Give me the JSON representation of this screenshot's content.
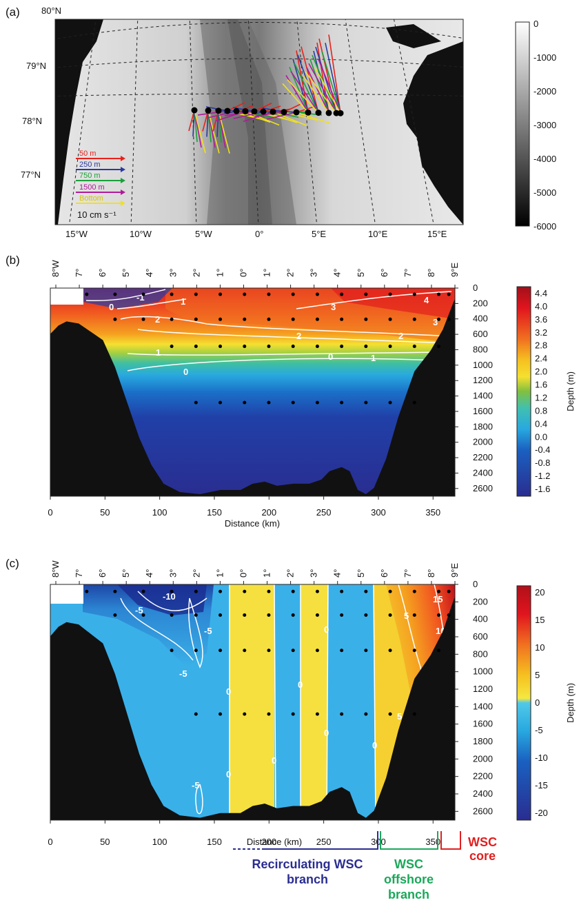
{
  "panels": {
    "a": {
      "label": "(a)",
      "lat_labels": [
        "80°N",
        "79°N",
        "78°N",
        "77°N"
      ],
      "lon_labels": [
        "15°W",
        "10°W",
        "5°W",
        "0°",
        "5°E",
        "10°E",
        "15°E"
      ],
      "legend": [
        {
          "label": "50 m",
          "color": "#e8201a"
        },
        {
          "label": "250 m",
          "color": "#2a3aa0"
        },
        {
          "label": "750 m",
          "color": "#1aa03a"
        },
        {
          "label": "1500 m",
          "color": "#b01a9a"
        },
        {
          "label": "Bottom",
          "color": "#f0e020"
        }
      ],
      "scale_label": "10 cm s⁻¹",
      "colorbar_ticks": [
        "0",
        "-1000",
        "-2000",
        "-3000",
        "-4000",
        "-5000",
        "-6000"
      ]
    },
    "b": {
      "label": "(b)",
      "top_ticks": [
        "8°W",
        "7°",
        "6°",
        "5°",
        "4°",
        "3°",
        "2°",
        "1°",
        "0°",
        "1°",
        "2°",
        "3°",
        "4°",
        "5°",
        "6°",
        "7°",
        "8°",
        "9°E"
      ],
      "x_ticks": [
        "0",
        "50",
        "100",
        "150",
        "200",
        "250",
        "300",
        "350"
      ],
      "xlabel": "Distance (km)",
      "y_ticks": [
        "0",
        "200",
        "400",
        "600",
        "800",
        "1000",
        "1200",
        "1400",
        "1600",
        "1800",
        "2000",
        "2200",
        "2400",
        "2600"
      ],
      "ylabel": "Depth (m)",
      "colorbar_ticks": [
        "4.4",
        "4.0",
        "3.6",
        "3.2",
        "2.8",
        "2.4",
        "2.0",
        "1.6",
        "1.2",
        "0.8",
        "0.4",
        "0.0",
        "-0.4",
        "-0.8",
        "-1.2",
        "-1.6"
      ],
      "contour_labels": [
        "-1",
        "0",
        "1",
        "2",
        "3",
        "4",
        "2",
        "3",
        "1",
        "1",
        "0",
        "0",
        "2"
      ]
    },
    "c": {
      "label": "(c)",
      "top_ticks": [
        "8°W",
        "7°",
        "6°",
        "5°",
        "4°",
        "3°",
        "2°",
        "1°",
        "0°",
        "1°",
        "2°",
        "3°",
        "4°",
        "5°",
        "6°",
        "7°",
        "8°",
        "9°E"
      ],
      "x_ticks": [
        "0",
        "50",
        "100",
        "150",
        "200",
        "250",
        "300",
        "350"
      ],
      "xlabel": "Distance (km)",
      "y_ticks": [
        "0",
        "200",
        "400",
        "600",
        "800",
        "1000",
        "1200",
        "1400",
        "1600",
        "1800",
        "2000",
        "2200",
        "2400",
        "2600"
      ],
      "ylabel": "Depth (m)",
      "colorbar_ticks": [
        "20",
        "15",
        "10",
        "5",
        "0",
        "-5",
        "-10",
        "-15",
        "-20"
      ],
      "contour_labels": [
        "-10",
        "-5",
        "-5",
        "-5",
        "-5",
        "0",
        "0",
        "0",
        "0",
        "0",
        "0",
        "0",
        "5",
        "5",
        "10",
        "15"
      ],
      "branches": [
        {
          "label": "Recirculating WSC branch",
          "color": "#2a2d90"
        },
        {
          "label": "WSC offshore branch",
          "color": "#1aa85a"
        },
        {
          "label": "WSC core",
          "color": "#e02020"
        }
      ]
    }
  },
  "chart_data": [
    {
      "type": "heatmap",
      "title": "",
      "description_map": "bathymetry map of Fram Strait with current vectors",
      "colorbar_range": [
        -6000,
        0
      ],
      "vector_depths": [
        "50 m",
        "250 m",
        "750 m",
        "1500 m",
        "Bottom"
      ],
      "vector_scale": "10 cm s⁻¹"
    },
    {
      "type": "heatmap",
      "xlabel": "Distance (km)",
      "ylabel": "Depth (m)",
      "xlim": [
        0,
        370
      ],
      "ylim": [
        2700,
        0
      ],
      "colorbar_range": [
        -1.6,
        4.4
      ],
      "contour_levels": [
        -1,
        0,
        1,
        2,
        3,
        4
      ]
    },
    {
      "type": "heatmap",
      "xlabel": "Distance (km)",
      "ylabel": "Depth (m)",
      "xlim": [
        0,
        370
      ],
      "ylim": [
        2700,
        0
      ],
      "colorbar_range": [
        -20,
        20
      ],
      "contour_levels": [
        -10,
        -5,
        0,
        5,
        10,
        15
      ]
    }
  ]
}
